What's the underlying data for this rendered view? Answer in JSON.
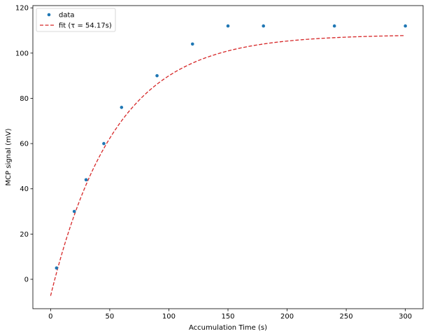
{
  "chart_data": {
    "type": "scatter",
    "xlabel": "Accumulation Time (s)",
    "ylabel": "MCP signal (mV)",
    "xlim": [
      -15,
      315
    ],
    "ylim": [
      -13,
      121
    ],
    "xticks": [
      0,
      50,
      100,
      150,
      200,
      250,
      300
    ],
    "yticks": [
      0,
      20,
      40,
      60,
      80,
      100,
      120
    ],
    "grid": false,
    "legend_position": "top-left",
    "series": [
      {
        "name": "data",
        "kind": "scatter",
        "color": "#1f77b4",
        "x": [
          5,
          20,
          30,
          45,
          60,
          90,
          120,
          150,
          180,
          240,
          300
        ],
        "y": [
          5,
          30,
          44,
          60,
          76,
          90,
          104,
          112,
          112,
          112,
          112
        ]
      },
      {
        "name": "fit (τ = 54.17s)",
        "kind": "line",
        "style": "dashed",
        "color": "#d62728",
        "model": {
          "A": 115.5,
          "tau": 54.17,
          "y0": -7.3,
          "x_start": 0,
          "x_end": 300
        }
      }
    ]
  }
}
